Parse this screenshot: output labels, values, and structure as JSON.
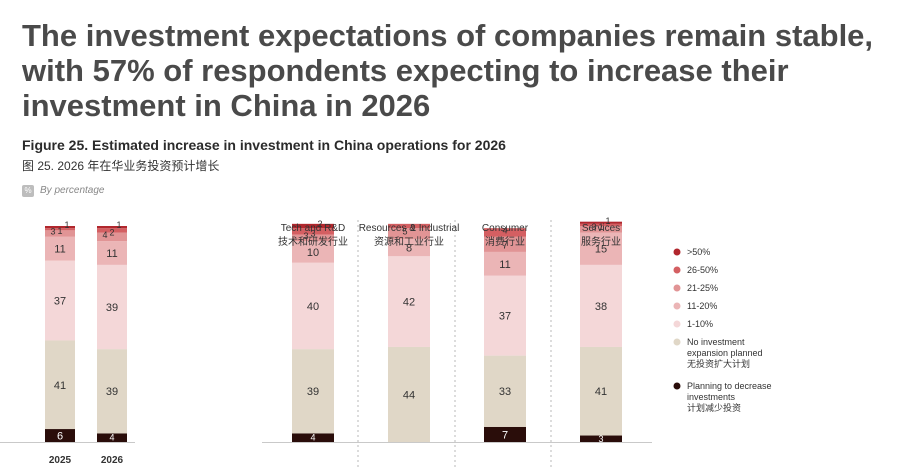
{
  "headline": "The investment expectations of companies remain stable, with 57% of respondents expecting to increase their investment in China in 2026",
  "figure": {
    "title": "Figure 25. Estimated increase in investment in China operations for 2026",
    "title_cn": "图 25. 2026 年在华业务投资预计增长",
    "badge": "%",
    "note": "By percentage"
  },
  "chart_data": {
    "type": "bar",
    "stacked": true,
    "ylim": [
      0,
      100
    ],
    "segments": [
      {
        "key": "decrease",
        "label": "Planning to decrease investments",
        "label_cn": "计划减少投资",
        "color": "#2a0d0a"
      },
      {
        "key": "none",
        "label": "No investment expansion planned",
        "label_cn": "无投资扩大计划",
        "color": "#e0d7c7"
      },
      {
        "key": "p1_10",
        "label": "1-10%",
        "label_cn": "",
        "color": "#f4d7d8"
      },
      {
        "key": "p11_20",
        "label": "11-20%",
        "label_cn": "",
        "color": "#ebb5b6"
      },
      {
        "key": "p21_25",
        "label": "21-25%",
        "label_cn": "",
        "color": "#e19495"
      },
      {
        "key": "p26_50",
        "label": "26-50%",
        "label_cn": "",
        "color": "#d45f62"
      },
      {
        "key": "p50",
        "label": ">50%",
        "label_cn": "",
        "color": "#b1272d"
      }
    ],
    "bars": [
      {
        "category": "2025",
        "values": [
          6,
          41,
          37,
          11,
          3,
          1,
          1
        ]
      },
      {
        "category": "2026",
        "values": [
          4,
          39,
          39,
          11,
          4,
          2,
          1
        ]
      },
      {
        "category": "Tech and R&D",
        "category_cn": "技术和研发行业",
        "values": [
          4,
          39,
          40,
          10,
          3,
          3,
          2
        ]
      },
      {
        "category": "Resources & Industrial",
        "category_cn": "资源和工业行业",
        "values": [
          0,
          44,
          42,
          8,
          5,
          2,
          0
        ]
      },
      {
        "category": "Consumer",
        "category_cn": "消费行业",
        "values": [
          7,
          33,
          37,
          11,
          7,
          4,
          0
        ]
      },
      {
        "category": "Services",
        "category_cn": "服务行业",
        "values": [
          3,
          41,
          38,
          15,
          3,
          1,
          1
        ]
      }
    ]
  }
}
